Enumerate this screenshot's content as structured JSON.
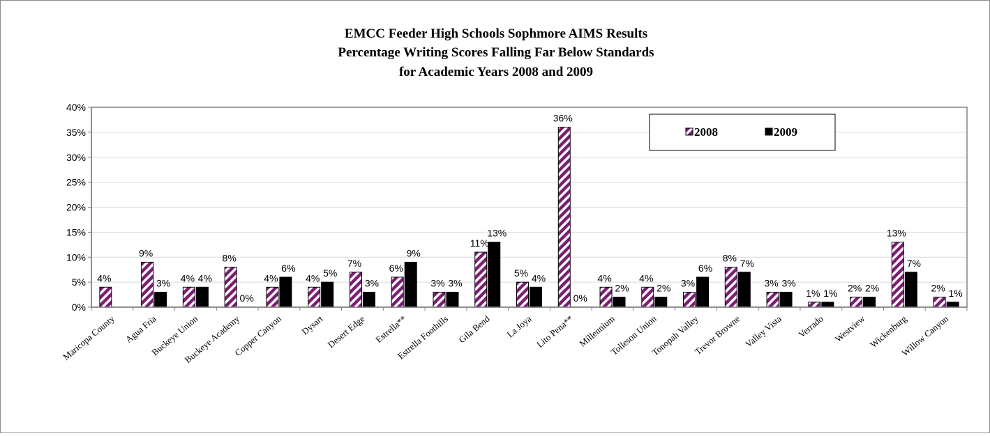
{
  "chart_data": {
    "type": "bar",
    "title": [
      "EMCC Feeder High Schools Sophmore AIMS Results",
      "Percentage Writing Scores Falling Far Below Standards",
      "for Academic Years 2008 and 2009"
    ],
    "xlabel": "",
    "ylabel": "",
    "ylim": [
      0,
      40
    ],
    "y_ticks": [
      "0%",
      "5%",
      "10%",
      "15%",
      "20%",
      "25%",
      "30%",
      "35%",
      "40%"
    ],
    "grid": true,
    "legend_position": "top-right",
    "categories": [
      "Maricopa County",
      "Agua Fria",
      "Buckeye Union",
      "Buckeye Academy",
      "Copper Canyon",
      "Dysart",
      "Desert Edge",
      "Estrella**",
      "Estrella Foothills",
      "Gila Bend",
      "La Joya",
      "Lito Pena**",
      "Millennium",
      "Tolleson Union",
      "Tonopah Valley",
      "Trevor Browne",
      "Valley Vista",
      "Verrado",
      "Westview",
      "Wickenburg",
      "Willow Canyon"
    ],
    "series": [
      {
        "name": "2008",
        "color": "#7b1f73",
        "pattern": "diagonal-stripes",
        "values": [
          4,
          9,
          4,
          8,
          4,
          4,
          7,
          6,
          3,
          11,
          5,
          36,
          4,
          4,
          3,
          8,
          3,
          1,
          2,
          13,
          2
        ],
        "labels": [
          "4%",
          "9%",
          "4%",
          "8%",
          "4%",
          "4%",
          "7%",
          "6%",
          "3%",
          "11%",
          "5%",
          "36%",
          "4%",
          "4%",
          "3%",
          "8%",
          "3%",
          "1%",
          "2%",
          "13%",
          "2%"
        ]
      },
      {
        "name": "2009",
        "color": "#000000",
        "pattern": "solid",
        "values": [
          null,
          3,
          4,
          0,
          6,
          5,
          3,
          9,
          3,
          13,
          4,
          0,
          2,
          2,
          6,
          7,
          3,
          1,
          2,
          7,
          1
        ],
        "labels": [
          null,
          "3%",
          "4%",
          "0%",
          "6%",
          "5%",
          "3%",
          "9%",
          "3%",
          "13%",
          "4%",
          "0%",
          "2%",
          "2%",
          "6%",
          "7%",
          "3%",
          "1%",
          "2%",
          "7%",
          "1%"
        ]
      }
    ]
  }
}
